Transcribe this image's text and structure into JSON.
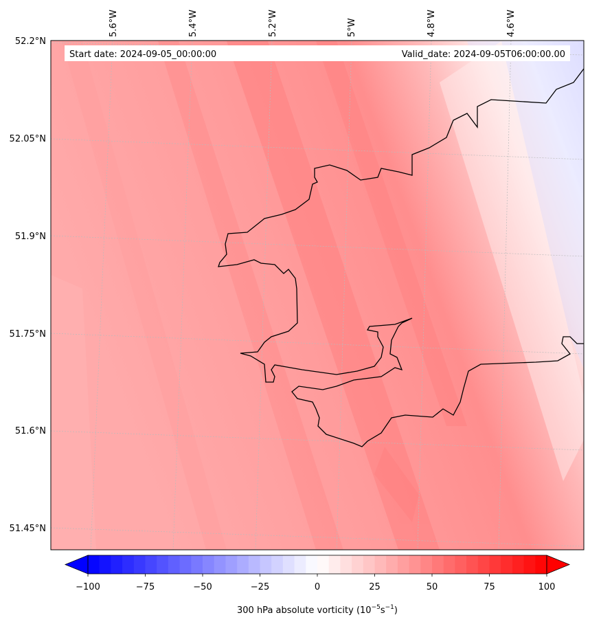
{
  "header": {
    "start_date": "Start date: 2024-09-05_00:00:00",
    "valid_date": "Valid_date: 2024-09-05T06:00:00.00"
  },
  "lon_labels": [
    "5.6°W",
    "5.4°W",
    "5.2°W",
    "5°W",
    "4.8°W",
    "4.6°W"
  ],
  "lat_labels": [
    "52.2°N",
    "52.05°N",
    "51.9°N",
    "51.75°N",
    "51.6°N",
    "51.45°N"
  ],
  "colorbar": {
    "min": -100,
    "max": 100,
    "levels": 40,
    "ticks": [
      "−100",
      "−75",
      "−50",
      "−25",
      "0",
      "25",
      "50",
      "75",
      "100"
    ],
    "label_main": "300 hPa absolute vorticity (10",
    "label_exp1": "−5",
    "label_unit": "s",
    "label_exp2": "−1",
    "label_close": ")"
  },
  "map": {
    "variable": "300 hPa absolute vorticity",
    "extent": {
      "lon": [
        -5.72,
        -4.5
      ],
      "lat": [
        51.42,
        52.2
      ]
    },
    "gridlines": true,
    "coastline_color": "#000000",
    "colormap": "bwr"
  }
}
